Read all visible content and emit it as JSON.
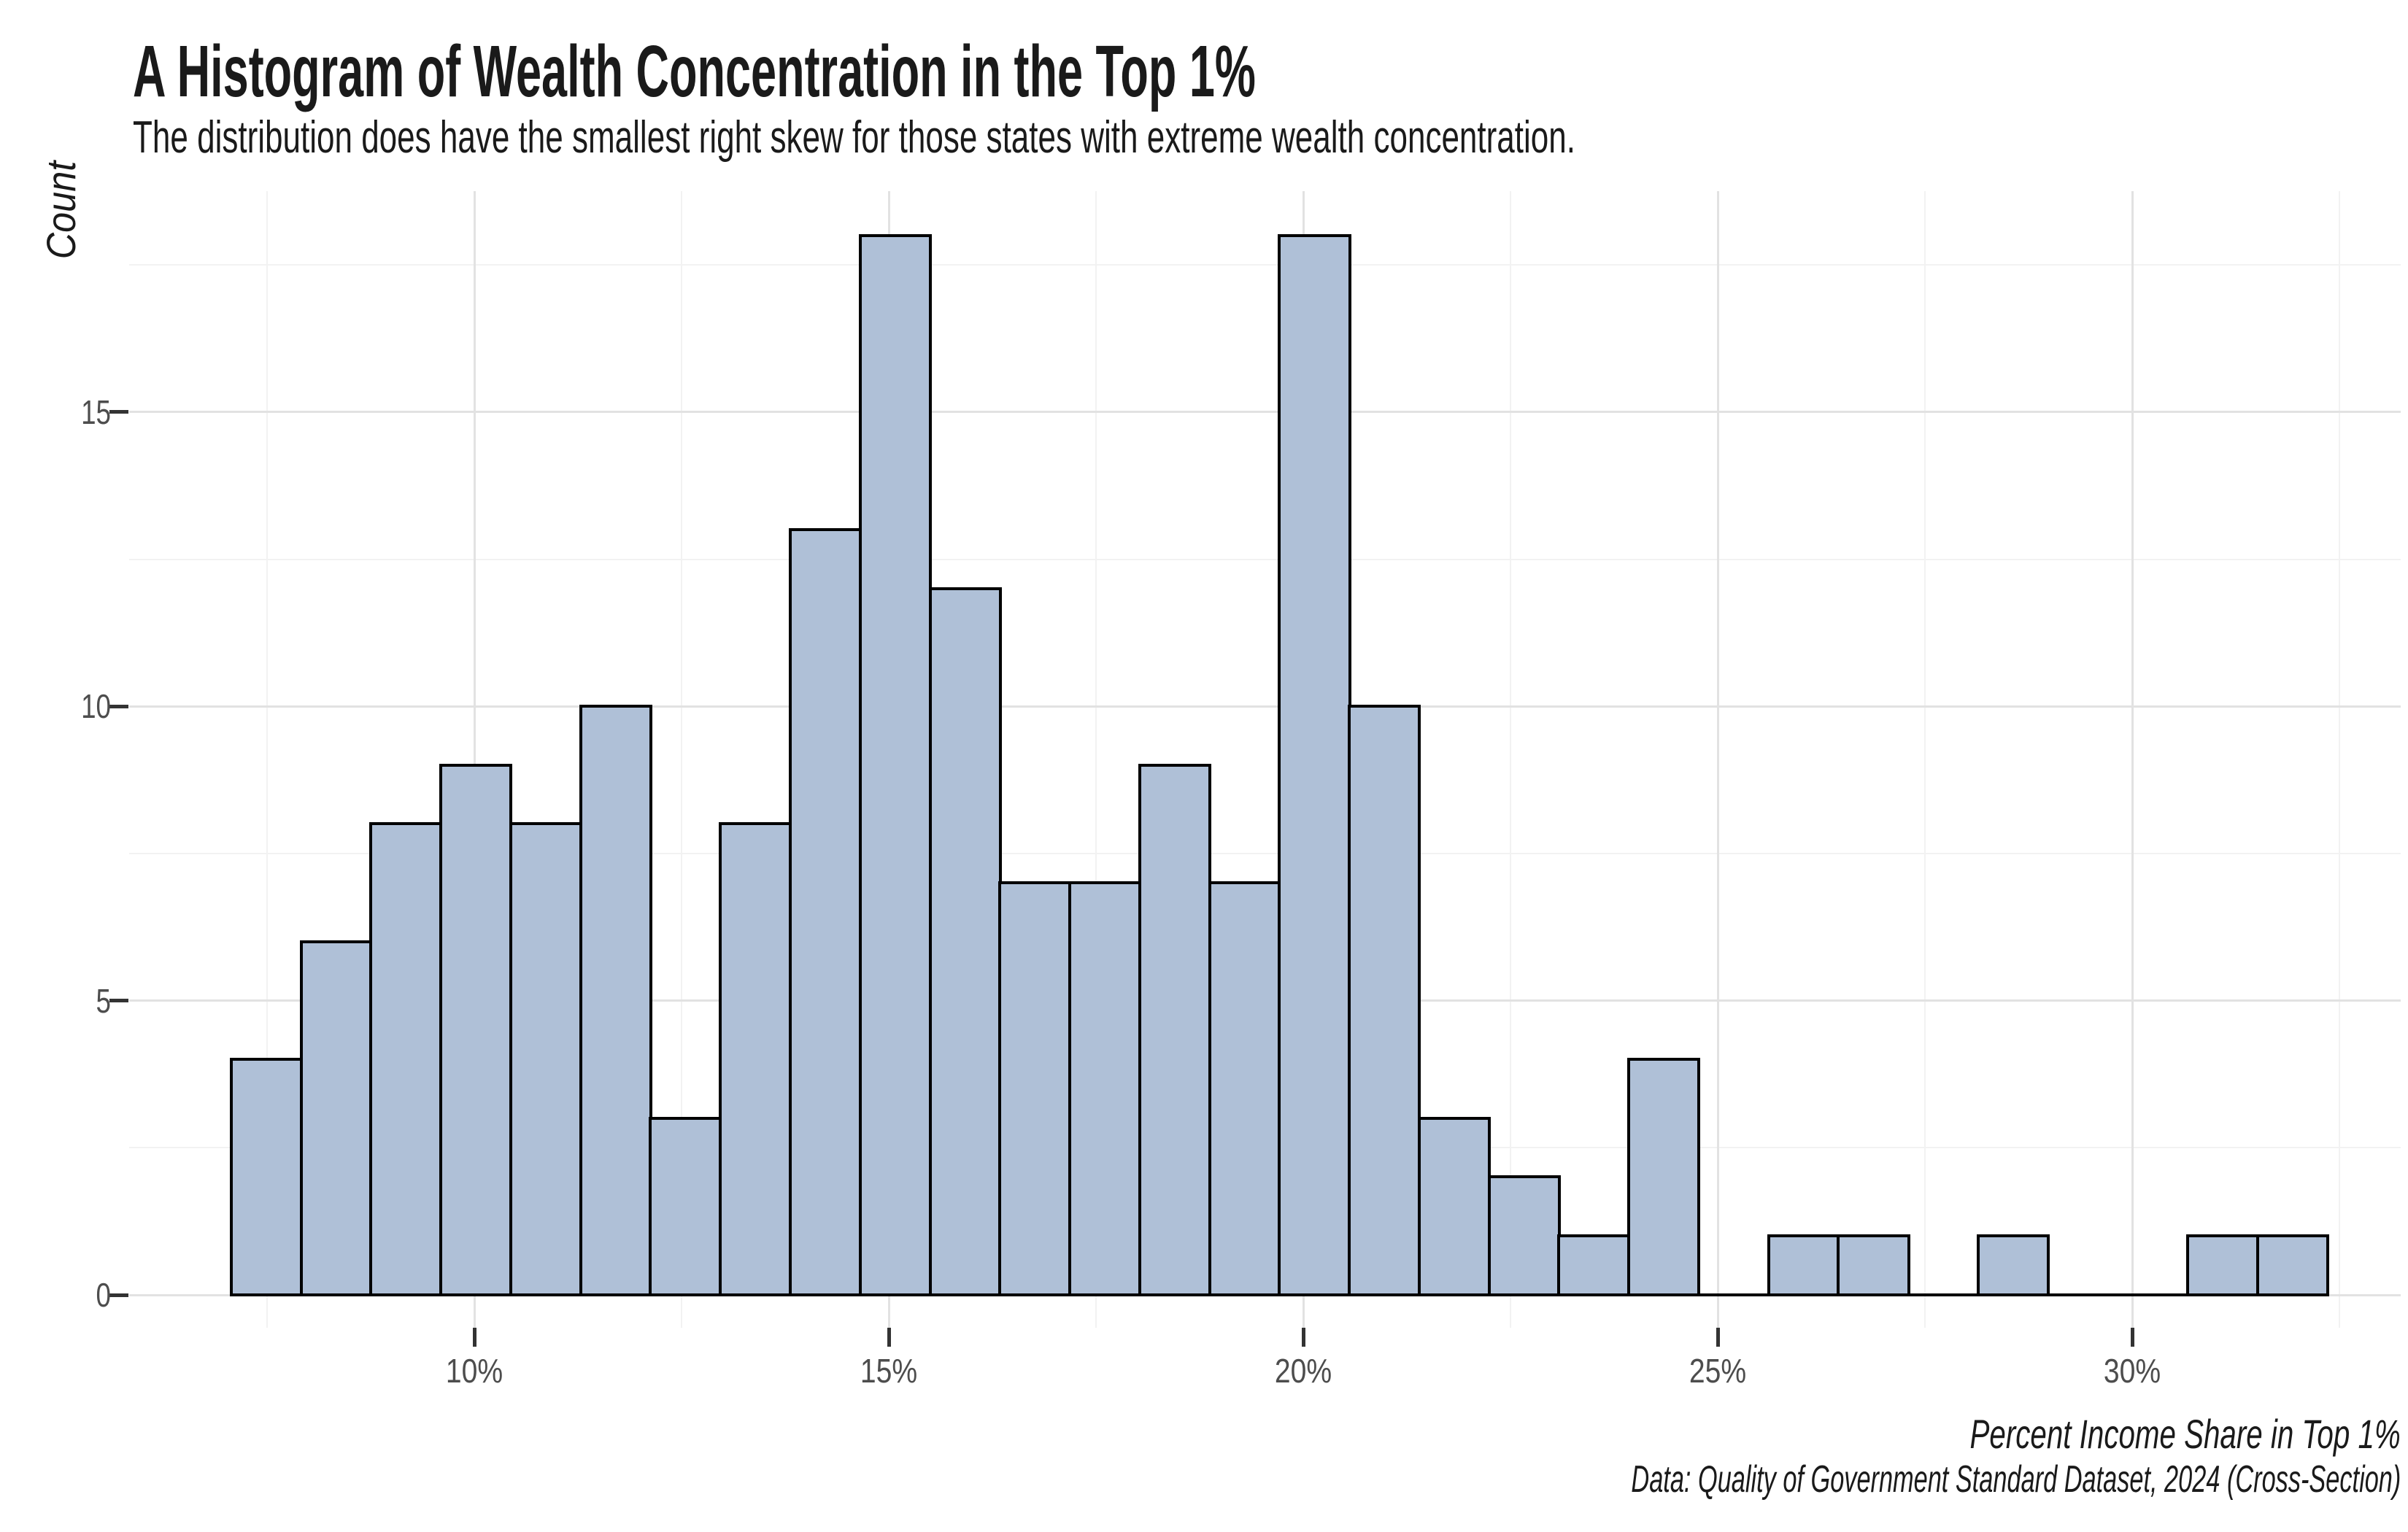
{
  "header": {
    "title": "A Histogram of Wealth Concentration in the Top 1%",
    "subtitle": "The distribution does have the smallest right skew for those states with extreme wealth concentration."
  },
  "chart_data": {
    "type": "bar",
    "variant": "histogram",
    "title": "A Histogram of Wealth Concentration in the Top 1%",
    "subtitle": "The distribution does have the smallest right skew for those states with extreme wealth concentration.",
    "xlabel": "Percent Income Share in Top 1%",
    "ylabel": "Count",
    "caption": "Data: Quality of Government Standard Dataset, 2024 (Cross-Section)",
    "bin_start_pct": 7.05,
    "bin_width_pct": 0.843,
    "counts": [
      4,
      6,
      8,
      9,
      8,
      10,
      3,
      8,
      13,
      18,
      12,
      7,
      7,
      9,
      7,
      18,
      10,
      3,
      2,
      1,
      4,
      0,
      1,
      1,
      0,
      1,
      0,
      0,
      1,
      1
    ],
    "x_ticks": [
      {
        "value": 10,
        "label": "10%"
      },
      {
        "value": 15,
        "label": "15%"
      },
      {
        "value": 20,
        "label": "20%"
      },
      {
        "value": 25,
        "label": "25%"
      },
      {
        "value": 30,
        "label": "30%"
      }
    ],
    "y_ticks": [
      {
        "value": 0,
        "label": "0"
      },
      {
        "value": 5,
        "label": "5"
      },
      {
        "value": 10,
        "label": "10"
      },
      {
        "value": 15,
        "label": "15"
      }
    ],
    "x_minor_gridlines": [
      7.5,
      12.5,
      17.5,
      22.5,
      27.5,
      32.5
    ],
    "y_minor_gridlines": [
      2.5,
      7.5,
      12.5,
      17.5
    ],
    "xlim": [
      5.8,
      33.6
    ],
    "ylim": [
      0,
      18.9
    ],
    "grid": "on",
    "legend": "none",
    "colors": {
      "bar_fill": "#afc0d7",
      "bar_stroke": "#000000",
      "grid_major": "#e2e2e2",
      "grid_minor": "#f2f2f2",
      "axis_text": "#4d4d4d",
      "tick_mark": "#333333",
      "text": "#1a1a1a",
      "background": "#ffffff"
    }
  }
}
